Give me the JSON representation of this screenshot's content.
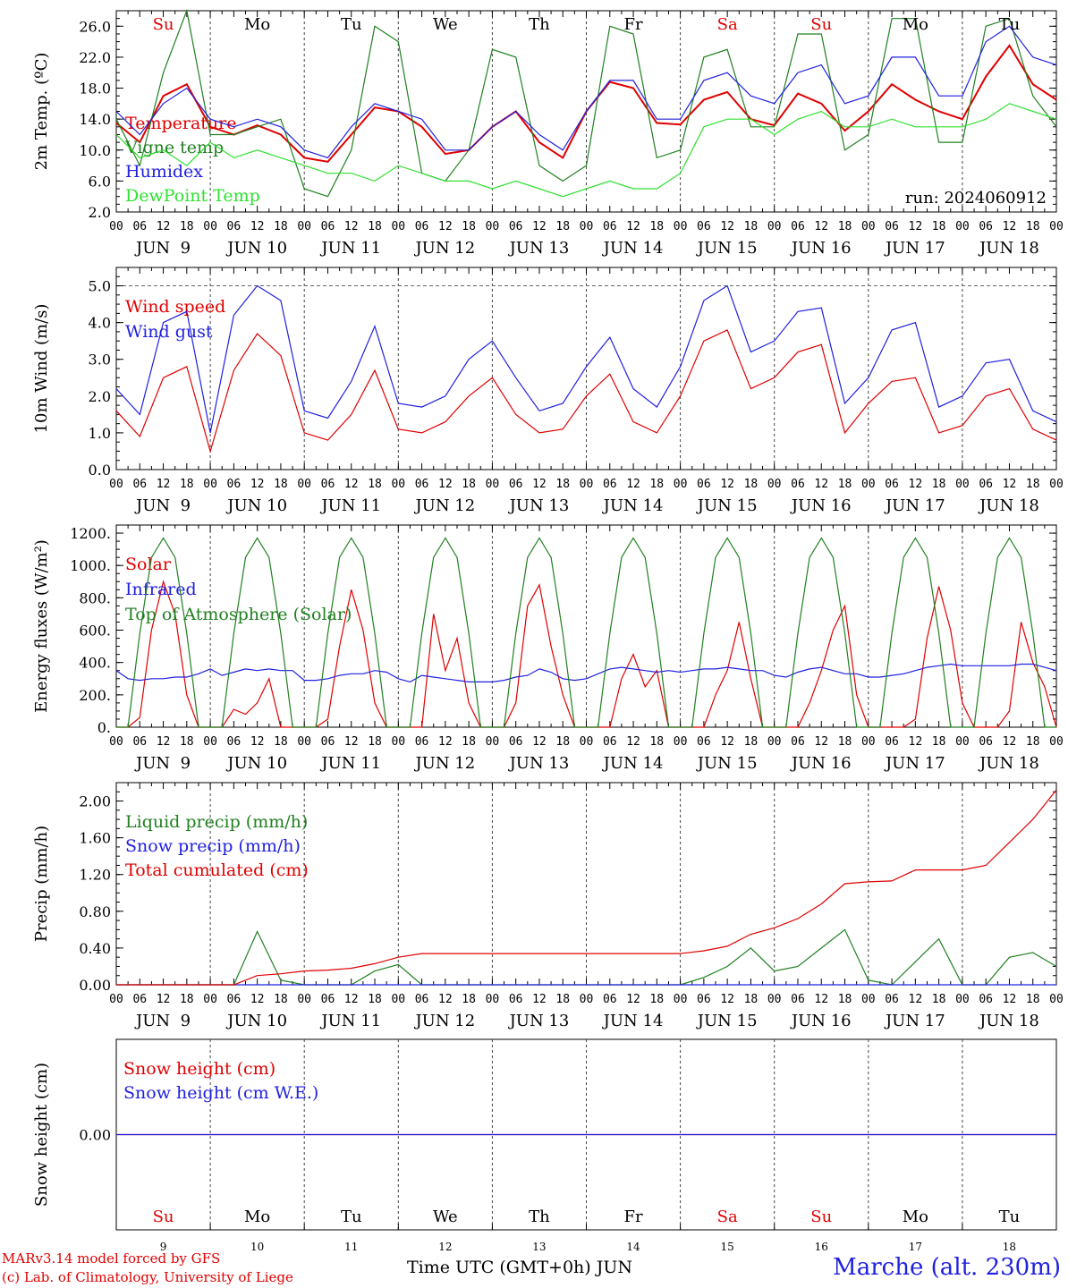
{
  "run_label": "run: 2024060912",
  "day_names": [
    "Su",
    "Mo",
    "Tu",
    "We",
    "Th",
    "Fr",
    "Sa",
    "Su",
    "Mo",
    "Tu"
  ],
  "day_name_colors": [
    "#e00000",
    "#000000",
    "#000000",
    "#000000",
    "#000000",
    "#000000",
    "#e00000",
    "#e00000",
    "#000000",
    "#000000"
  ],
  "date_labels": [
    "JUN  9",
    "JUN 10",
    "JUN 11",
    "JUN 12",
    "JUN 13",
    "JUN 14",
    "JUN 15",
    "JUN 16",
    "JUN 17",
    "JUN 18"
  ],
  "hour_labels": [
    "00",
    "06",
    "12",
    "18"
  ],
  "bottom_day_numbers": [
    "9",
    "10",
    "11",
    "12",
    "13",
    "14",
    "15",
    "16",
    "17",
    "18"
  ],
  "footer": {
    "credit_line1": "MARv3.14 model forced by GFS",
    "credit_line2": "(c) Lab. of Climatology, University of Liege",
    "time_axis": "Time UTC (GMT+0h) JUN",
    "station": "Marche (alt. 230m)"
  },
  "chart_data": [
    {
      "id": "temperature",
      "type": "line",
      "ylabel": "2m Temp. (ºC)",
      "ylim": [
        2,
        28
      ],
      "yticks": [
        2,
        6,
        10,
        14,
        18,
        22,
        26
      ],
      "ytick_labels": [
        "2.0",
        "6.0",
        "10.0",
        "14.0",
        "18.0",
        "22.0",
        "26.0"
      ],
      "x_unit": "hours since JUN 9 00 UTC",
      "x": [
        0,
        6,
        12,
        18,
        24,
        30,
        36,
        42,
        48,
        54,
        60,
        66,
        72,
        78,
        84,
        90,
        96,
        102,
        108,
        114,
        120,
        126,
        132,
        138,
        144,
        150,
        156,
        162,
        168,
        174,
        180,
        186,
        192,
        198,
        204,
        210,
        216,
        222,
        228,
        234,
        240
      ],
      "series": [
        {
          "name": "Temperature",
          "color": "#e00000",
          "values": [
            13.5,
            11,
            17,
            18.5,
            13,
            12,
            13.2,
            12,
            9,
            8.5,
            12,
            15.5,
            15,
            13,
            9.5,
            10,
            13,
            15,
            11,
            9,
            15,
            18.8,
            18,
            13.5,
            13.3,
            16.5,
            17.5,
            14,
            13.2,
            17.3,
            16,
            12.5,
            15,
            18.5,
            16.5,
            15,
            14,
            19.5,
            23.5,
            18.5,
            16.5
          ]
        },
        {
          "name": "Vigne temp",
          "color": "#208020",
          "values": [
            14,
            8,
            20,
            28,
            12,
            12,
            13,
            14,
            5,
            4,
            10,
            26,
            24,
            7,
            6,
            10,
            23,
            22,
            8,
            6,
            8,
            26,
            25,
            9,
            10,
            22,
            23,
            13,
            13,
            25,
            25,
            10,
            12,
            27,
            27,
            11,
            11,
            26,
            27,
            17,
            13
          ]
        },
        {
          "name": "Humidex",
          "color": "#2020e0",
          "values": [
            15,
            12,
            16,
            18,
            14,
            13,
            14,
            13,
            10,
            9,
            13,
            16,
            15,
            14,
            10,
            10,
            13,
            15,
            12,
            10,
            15,
            19,
            19,
            14,
            14,
            19,
            20,
            17,
            16,
            20,
            21,
            16,
            17,
            22,
            22,
            17,
            17,
            24,
            26,
            22,
            21
          ]
        },
        {
          "name": "DewPoint Temp",
          "color": "#30e030",
          "values": [
            12,
            9,
            10,
            8,
            11,
            9,
            10,
            9,
            8,
            7,
            7,
            6,
            8,
            7,
            6,
            6,
            5,
            6,
            5,
            4,
            5,
            6,
            5,
            5,
            7,
            13,
            14,
            14,
            12,
            14,
            15,
            13,
            13,
            14,
            13,
            13,
            13,
            14,
            16,
            15,
            14
          ]
        }
      ]
    },
    {
      "id": "wind",
      "type": "line",
      "ylabel": "10m Wind (m/s)",
      "ylim": [
        0,
        5.5
      ],
      "yticks": [
        0,
        1,
        2,
        3,
        4,
        5
      ],
      "ytick_labels": [
        "0.0",
        "1.0",
        "2.0",
        "3.0",
        "4.0",
        "5.0"
      ],
      "reference_line": 5.0,
      "x_unit": "hours since JUN 9 00 UTC",
      "x": [
        0,
        6,
        12,
        18,
        24,
        30,
        36,
        42,
        48,
        54,
        60,
        66,
        72,
        78,
        84,
        90,
        96,
        102,
        108,
        114,
        120,
        126,
        132,
        138,
        144,
        150,
        156,
        162,
        168,
        174,
        180,
        186,
        192,
        198,
        204,
        210,
        216,
        222,
        228,
        234,
        240
      ],
      "series": [
        {
          "name": "Wind speed",
          "color": "#e00000",
          "values": [
            1.6,
            0.9,
            2.5,
            2.8,
            0.5,
            2.7,
            3.7,
            3.1,
            1.0,
            0.8,
            1.5,
            2.7,
            1.1,
            1.0,
            1.3,
            2.0,
            2.5,
            1.5,
            1.0,
            1.1,
            2.0,
            2.6,
            1.3,
            1.0,
            2.0,
            3.5,
            3.8,
            2.2,
            2.5,
            3.2,
            3.4,
            1.0,
            1.8,
            2.4,
            2.5,
            1.0,
            1.2,
            2.0,
            2.2,
            1.1,
            0.8
          ]
        },
        {
          "name": "Wind gust",
          "color": "#2020e0",
          "values": [
            2.2,
            1.5,
            4.0,
            4.3,
            1.0,
            4.2,
            5.0,
            4.6,
            1.6,
            1.4,
            2.4,
            3.9,
            1.8,
            1.7,
            2.0,
            3.0,
            3.5,
            2.5,
            1.6,
            1.8,
            2.8,
            3.6,
            2.2,
            1.7,
            2.8,
            4.6,
            5.0,
            3.2,
            3.5,
            4.3,
            4.4,
            1.8,
            2.5,
            3.8,
            4.0,
            1.7,
            2.0,
            2.9,
            3.0,
            1.6,
            1.3
          ]
        }
      ]
    },
    {
      "id": "energy",
      "type": "line",
      "ylabel": "Energy fluxes (W/m²)",
      "ylim": [
        0,
        1250
      ],
      "yticks": [
        0,
        200,
        400,
        600,
        800,
        1000,
        1200
      ],
      "ytick_labels": [
        "0.",
        "200.",
        "400.",
        "600.",
        "800.",
        "1000.",
        "1200."
      ],
      "x_unit": "hours since JUN 9 00 UTC",
      "x": [
        0,
        3,
        6,
        9,
        12,
        15,
        18,
        21,
        24,
        27,
        30,
        33,
        36,
        39,
        42,
        45,
        48,
        51,
        54,
        57,
        60,
        63,
        66,
        69,
        72,
        75,
        78,
        81,
        84,
        87,
        90,
        93,
        96,
        99,
        102,
        105,
        108,
        111,
        114,
        117,
        120,
        123,
        126,
        129,
        132,
        135,
        138,
        141,
        144,
        147,
        150,
        153,
        156,
        159,
        162,
        165,
        168,
        171,
        174,
        177,
        180,
        183,
        186,
        189,
        192,
        195,
        198,
        201,
        204,
        207,
        210,
        213,
        216,
        219,
        222,
        225,
        228,
        231,
        234,
        237,
        240
      ],
      "series": [
        {
          "name": "Solar",
          "color": "#e00000",
          "values": [
            0,
            0,
            60,
            600,
            900,
            700,
            200,
            0,
            0,
            0,
            110,
            80,
            150,
            300,
            0,
            0,
            0,
            0,
            50,
            500,
            850,
            600,
            150,
            0,
            0,
            0,
            0,
            700,
            350,
            550,
            150,
            0,
            0,
            0,
            150,
            750,
            880,
            500,
            200,
            0,
            0,
            0,
            0,
            300,
            450,
            250,
            350,
            0,
            0,
            0,
            0,
            200,
            350,
            650,
            300,
            0,
            0,
            0,
            0,
            150,
            350,
            600,
            750,
            200,
            0,
            0,
            0,
            0,
            50,
            550,
            870,
            600,
            150,
            0,
            0,
            0,
            100,
            650,
            400,
            250,
            0
          ]
        },
        {
          "name": "Infrared",
          "color": "#2020e0",
          "values": [
            350,
            300,
            290,
            300,
            300,
            310,
            310,
            330,
            360,
            320,
            340,
            360,
            350,
            360,
            350,
            350,
            290,
            290,
            300,
            320,
            330,
            330,
            350,
            340,
            300,
            280,
            320,
            310,
            300,
            290,
            280,
            280,
            280,
            290,
            310,
            320,
            360,
            340,
            300,
            290,
            300,
            330,
            360,
            370,
            360,
            350,
            340,
            350,
            340,
            350,
            360,
            360,
            370,
            360,
            350,
            350,
            320,
            310,
            340,
            360,
            370,
            350,
            330,
            330,
            310,
            310,
            320,
            330,
            350,
            370,
            380,
            390,
            380,
            380,
            380,
            380,
            380,
            390,
            390,
            370,
            350
          ]
        },
        {
          "name": "Top of Atmosphere (Solar)",
          "color": "#208020",
          "values": [
            0,
            0,
            580,
            1050,
            1170,
            1050,
            580,
            0,
            0,
            0,
            580,
            1050,
            1170,
            1050,
            580,
            0,
            0,
            0,
            580,
            1050,
            1170,
            1050,
            580,
            0,
            0,
            0,
            580,
            1050,
            1170,
            1050,
            580,
            0,
            0,
            0,
            580,
            1050,
            1170,
            1050,
            580,
            0,
            0,
            0,
            580,
            1050,
            1170,
            1050,
            580,
            0,
            0,
            0,
            580,
            1050,
            1170,
            1050,
            580,
            0,
            0,
            0,
            580,
            1050,
            1170,
            1050,
            580,
            0,
            0,
            0,
            580,
            1050,
            1170,
            1050,
            580,
            0,
            0,
            0,
            580,
            1050,
            1170,
            1050,
            580,
            0,
            0
          ]
        }
      ]
    },
    {
      "id": "precip",
      "type": "line",
      "ylabel": "Precip (mm/h)",
      "ylim": [
        0,
        2.2
      ],
      "yticks": [
        0,
        0.4,
        0.8,
        1.2,
        1.6,
        2.0
      ],
      "ytick_labels": [
        "0.00",
        "0.40",
        "0.80",
        "1.20",
        "1.60",
        "2.00"
      ],
      "x_unit": "hours since JUN 9 00 UTC",
      "x": [
        0,
        6,
        12,
        18,
        24,
        30,
        36,
        42,
        48,
        54,
        60,
        66,
        72,
        78,
        84,
        90,
        96,
        102,
        108,
        114,
        120,
        126,
        132,
        138,
        144,
        150,
        156,
        162,
        168,
        174,
        180,
        186,
        192,
        198,
        204,
        210,
        216,
        222,
        228,
        234,
        240
      ],
      "series": [
        {
          "name": "Liquid precip (mm/h)",
          "color": "#208020",
          "values": [
            0,
            0,
            0,
            0,
            0,
            0,
            0.58,
            0.05,
            0,
            0,
            0,
            0.15,
            0.22,
            0,
            0,
            0,
            0,
            0,
            0,
            0,
            0,
            0,
            0,
            0,
            0,
            0.08,
            0.2,
            0.4,
            0.15,
            0.2,
            0.4,
            0.6,
            0.05,
            0,
            0.25,
            0.5,
            0,
            0,
            0.3,
            0.35,
            0.2
          ]
        },
        {
          "name": "Snow precip (mm/h)",
          "color": "#2020e0",
          "values": [
            0,
            0,
            0,
            0,
            0,
            0,
            0,
            0,
            0,
            0,
            0,
            0,
            0,
            0,
            0,
            0,
            0,
            0,
            0,
            0,
            0,
            0,
            0,
            0,
            0,
            0,
            0,
            0,
            0,
            0,
            0,
            0,
            0,
            0,
            0,
            0,
            0,
            0,
            0,
            0,
            0
          ]
        },
        {
          "name": "Total cumulated (cm)",
          "color": "#e00000",
          "values": [
            0,
            0,
            0,
            0,
            0,
            0,
            0.1,
            0.12,
            0.15,
            0.16,
            0.18,
            0.23,
            0.3,
            0.34,
            0.34,
            0.34,
            0.34,
            0.34,
            0.34,
            0.34,
            0.34,
            0.34,
            0.34,
            0.34,
            0.34,
            0.37,
            0.42,
            0.55,
            0.62,
            0.72,
            0.88,
            1.1,
            1.12,
            1.13,
            1.25,
            1.25,
            1.25,
            1.3,
            1.55,
            1.8,
            2.12
          ]
        }
      ]
    },
    {
      "id": "snow",
      "type": "line",
      "ylabel": "Snow height (cm)",
      "ylim": [
        -1,
        1
      ],
      "yticks": [
        0
      ],
      "ytick_labels": [
        "0.00"
      ],
      "x_unit": "hours since JUN 9 00 UTC",
      "x": [
        0,
        240
      ],
      "series": [
        {
          "name": "Snow height (cm)",
          "color": "#e00000",
          "values": [
            0,
            0
          ]
        },
        {
          "name": "Snow height (cm W.E.)",
          "color": "#2020e0",
          "values": [
            0,
            0
          ]
        }
      ]
    }
  ]
}
